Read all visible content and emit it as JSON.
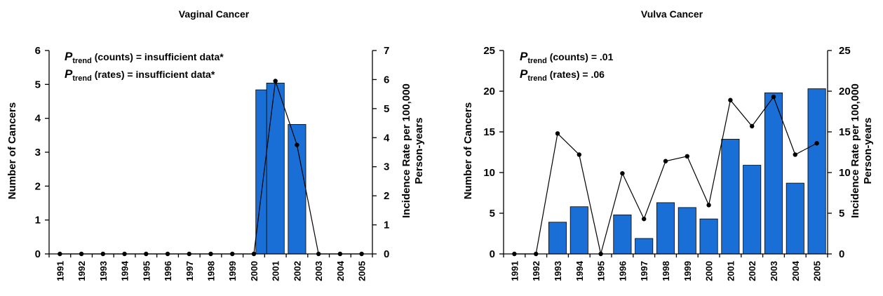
{
  "chart_data": [
    {
      "type": "bar",
      "title": "Vaginal Cancer",
      "ylabel": "Number of Cancers",
      "y2label_line1": "Incidence Rate per 100,000",
      "y2label_line2": "Person-years",
      "categories": [
        "1991",
        "1992",
        "1993",
        "1994",
        "1995",
        "1996",
        "1997",
        "1998",
        "1999",
        "2000",
        "2001",
        "2002",
        "2003",
        "2004",
        "2005"
      ],
      "ylim": [
        0,
        6
      ],
      "yticks": [
        "0",
        "1",
        "2",
        "3",
        "4",
        "5",
        "6"
      ],
      "y2lim": [
        0,
        7
      ],
      "y2ticks": [
        "0",
        "1",
        "2",
        "3",
        "4",
        "5",
        "6",
        "7"
      ],
      "annotations": [
        {
          "p": "P",
          "sub": "trend",
          "text": " (counts) = insufficient data*"
        },
        {
          "p": "P",
          "sub": "trend",
          "text": " (rates) = insufficient data*"
        }
      ],
      "series": [
        {
          "type": "bar",
          "axis": "left",
          "values": [
            0,
            0,
            0,
            0,
            0,
            0,
            0,
            0,
            0,
            0,
            5.04,
            3.82,
            0,
            0,
            0
          ],
          "extra_bars": [
            {
              "category_index": 10,
              "offset": -0.5,
              "value": 4.84
            }
          ]
        },
        {
          "type": "line",
          "axis": "right",
          "values": [
            0,
            0,
            0,
            0,
            0,
            0,
            0,
            0,
            0,
            0,
            5.95,
            3.75,
            0,
            0,
            0
          ]
        }
      ],
      "grid": false,
      "color": "#1a6fd6"
    },
    {
      "type": "bar",
      "title": "Vulva Cancer",
      "ylabel": "Number of Cancers",
      "y2label_line1": "Incidence Rate per 100,000",
      "y2label_line2": "Person-years",
      "categories": [
        "1991",
        "1992",
        "1993",
        "1994",
        "1995",
        "1996",
        "1997",
        "1998",
        "1999",
        "2000",
        "2001",
        "2002",
        "2003",
        "2004",
        "2005"
      ],
      "ylim": [
        0,
        25
      ],
      "yticks": [
        "0",
        "5",
        "10",
        "15",
        "20",
        "25"
      ],
      "y2lim": [
        0,
        25
      ],
      "y2ticks": [
        "0",
        "5",
        "10",
        "15",
        "20",
        "25"
      ],
      "annotations": [
        {
          "p": "P",
          "sub": "trend",
          "text": " (counts) = .01"
        },
        {
          "p": "P",
          "sub": "trend",
          "text": " (rates) = .06"
        }
      ],
      "series": [
        {
          "type": "bar",
          "axis": "left",
          "values": [
            0,
            0,
            3.9,
            5.8,
            0,
            4.8,
            1.9,
            6.3,
            5.7,
            4.3,
            14.1,
            10.9,
            19.8,
            8.7,
            20.3
          ]
        },
        {
          "type": "line",
          "axis": "right",
          "values": [
            0,
            0,
            14.8,
            12.2,
            0,
            9.9,
            4.3,
            11.4,
            12.0,
            6.0,
            18.9,
            15.7,
            19.3,
            12.2,
            13.6
          ]
        }
      ],
      "grid": false,
      "color": "#1a6fd6"
    }
  ]
}
